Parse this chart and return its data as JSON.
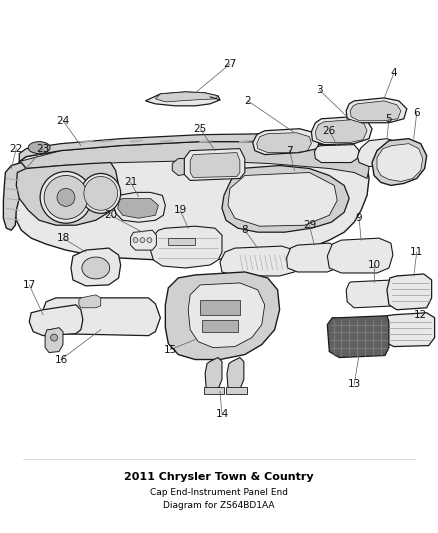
{
  "title": "2011 Chrysler Town & Country",
  "subtitle1": "Cap End-Instrument Panel End",
  "subtitle2": "Diagram for ZS64BD1AA",
  "fig_width": 4.38,
  "fig_height": 5.33,
  "dpi": 100,
  "bg": "#ffffff",
  "lc": "#1a1a1a",
  "lc_thin": "#333333",
  "lc_light": "#888888",
  "fill_light": "#e8e8e8",
  "fill_mid": "#d0d0d0",
  "fill_dark": "#b0b0b0",
  "fill_vdark": "#606060",
  "number_color": "#111111",
  "number_fs": 7.5,
  "title_fs": 8,
  "sub_fs": 6.5
}
